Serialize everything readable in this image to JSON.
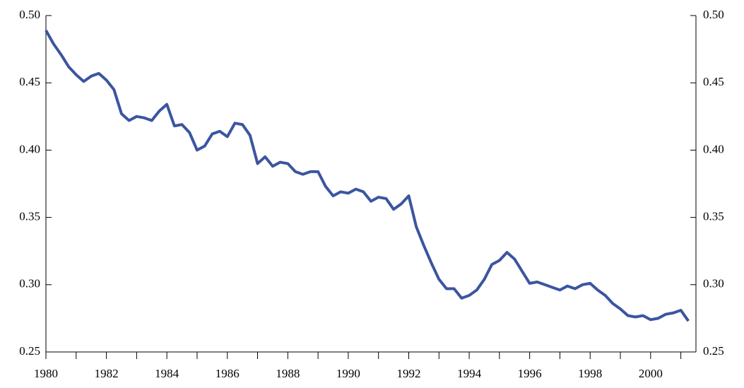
{
  "chart_data": {
    "type": "line",
    "x": [
      1980,
      1980.25,
      1980.5,
      1980.75,
      1981,
      1981.25,
      1981.5,
      1981.75,
      1982,
      1982.25,
      1982.5,
      1982.75,
      1983,
      1983.25,
      1983.5,
      1983.75,
      1984,
      1984.25,
      1984.5,
      1984.75,
      1985,
      1985.25,
      1985.5,
      1985.75,
      1986,
      1986.25,
      1986.5,
      1986.75,
      1987,
      1987.25,
      1987.5,
      1987.75,
      1988,
      1988.25,
      1988.5,
      1988.75,
      1989,
      1989.25,
      1989.5,
      1989.75,
      1990,
      1990.25,
      1990.5,
      1990.75,
      1991,
      1991.25,
      1991.5,
      1991.75,
      1992,
      1992.25,
      1992.5,
      1992.75,
      1993,
      1993.25,
      1993.5,
      1993.75,
      1994,
      1994.25,
      1994.5,
      1994.75,
      1995,
      1995.25,
      1995.5,
      1995.75,
      1996,
      1996.25,
      1996.5,
      1996.75,
      1997,
      1997.25,
      1997.5,
      1997.75,
      1998,
      1998.25,
      1998.5,
      1998.75,
      1999,
      1999.25,
      1999.5,
      1999.75,
      2000,
      2000.25,
      2000.5,
      2000.75,
      2001,
      2001.25
    ],
    "series": [
      {
        "color": "#3b55a0",
        "values": [
          0.489,
          0.479,
          0.471,
          0.462,
          0.456,
          0.451,
          0.455,
          0.457,
          0.452,
          0.445,
          0.427,
          0.422,
          0.425,
          0.424,
          0.422,
          0.429,
          0.434,
          0.418,
          0.419,
          0.413,
          0.4,
          0.403,
          0.412,
          0.414,
          0.41,
          0.42,
          0.419,
          0.411,
          0.39,
          0.395,
          0.388,
          0.391,
          0.39,
          0.384,
          0.382,
          0.384,
          0.384,
          0.373,
          0.366,
          0.369,
          0.368,
          0.371,
          0.369,
          0.362,
          0.365,
          0.364,
          0.356,
          0.36,
          0.366,
          0.343,
          0.329,
          0.316,
          0.304,
          0.297,
          0.297,
          0.29,
          0.292,
          0.296,
          0.304,
          0.315,
          0.318,
          0.324,
          0.319,
          0.31,
          0.301,
          0.302,
          0.3,
          0.298,
          0.296,
          0.299,
          0.297,
          0.3,
          0.301,
          0.296,
          0.292,
          0.286,
          0.282,
          0.277,
          0.276,
          0.277,
          0.274,
          0.275,
          0.278,
          0.279,
          0.281,
          0.273
        ]
      }
    ],
    "xlim": [
      1980,
      2001.5
    ],
    "xticks": [
      1980,
      1982,
      1984,
      1986,
      1988,
      1990,
      1992,
      1994,
      1996,
      1998,
      2000
    ],
    "xminor_ticks": [
      1981,
      1983,
      1985,
      1987,
      1989,
      1991,
      1993,
      1995,
      1997,
      1999,
      2001
    ],
    "ylim": [
      0.25,
      0.5
    ],
    "yticks": [
      0.25,
      {
        "value": 0.3,
        "label": "0.30"
      },
      0.35,
      {
        "value": 0.4,
        "label": "0.40"
      },
      0.45,
      {
        "value": 0.5,
        "label": "0.50"
      }
    ],
    "y2lim": [
      0.25,
      0.5
    ],
    "y2ticks": [
      0.25,
      {
        "value": 0.3,
        "label": "0.30"
      },
      0.35,
      {
        "value": 0.4,
        "label": "0.40"
      },
      0.45,
      {
        "value": 0.5,
        "label": "0.50"
      }
    ]
  }
}
